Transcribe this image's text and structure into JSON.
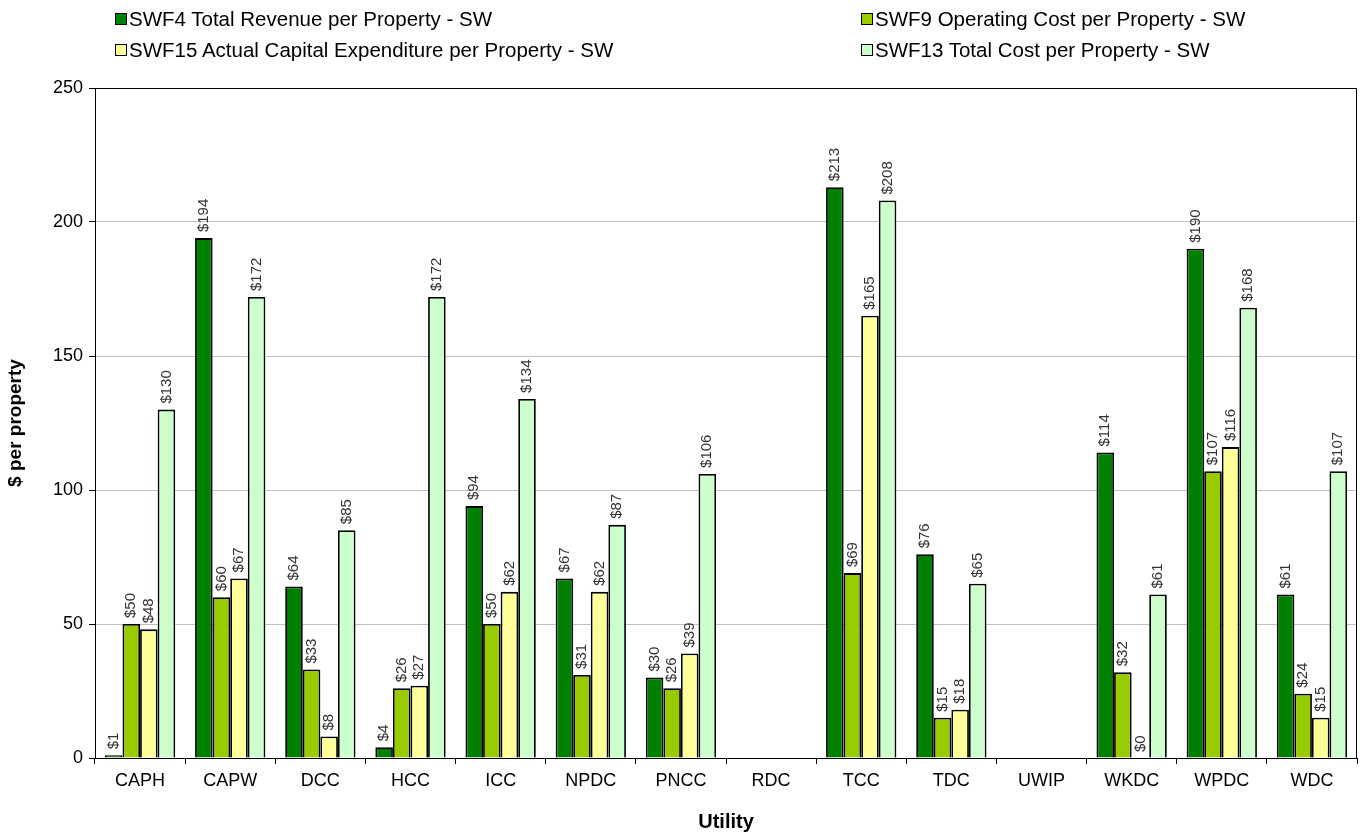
{
  "chart_data": {
    "type": "bar",
    "xlabel": "Utility",
    "ylabel": "$ per property",
    "categories": [
      "CAPH",
      "CAPW",
      "DCC",
      "HCC",
      "ICC",
      "NPDC",
      "PNCC",
      "RDC",
      "TCC",
      "TDC",
      "UWIP",
      "WKDC",
      "WPDC",
      "WDC"
    ],
    "series": [
      {
        "name": "SWF4 Total Revenue per Property - SW",
        "color": "#008000",
        "values": [
          1,
          194,
          64,
          4,
          94,
          67,
          30,
          null,
          213,
          76,
          null,
          114,
          190,
          61
        ],
        "value_labels": [
          "$1",
          "$194",
          "$64",
          "$4",
          "$94",
          "$67",
          "$30",
          null,
          "$213",
          "$76",
          null,
          "$114",
          "$190",
          "$61"
        ]
      },
      {
        "name": "SWF9 Operating Cost per Property - SW",
        "color": "#99cc00",
        "values": [
          50,
          60,
          33,
          26,
          50,
          31,
          26,
          null,
          69,
          15,
          null,
          32,
          107,
          24
        ],
        "value_labels": [
          "$50",
          "$60",
          "$33",
          "$26",
          "$50",
          "$31",
          "$26",
          null,
          "$69",
          "$15",
          null,
          "$32",
          "$107",
          "$24"
        ]
      },
      {
        "name": "SWF15 Actual Capital Expenditure per Property - SW",
        "color": "#ffff99",
        "values": [
          48,
          67,
          8,
          27,
          62,
          62,
          39,
          null,
          165,
          18,
          null,
          0,
          116,
          15
        ],
        "value_labels": [
          "$48",
          "$67",
          "$8",
          "$27",
          "$62",
          "$62",
          "$39",
          null,
          "$165",
          "$18",
          null,
          "$0",
          "$116",
          "$15"
        ]
      },
      {
        "name": "SWF13 Total Cost per Property - SW",
        "color": "#ccffcc",
        "values": [
          130,
          172,
          85,
          172,
          134,
          87,
          106,
          null,
          208,
          65,
          null,
          61,
          168,
          107
        ],
        "value_labels": [
          "$130",
          "$172",
          "$85",
          "$172",
          "$134",
          "$87",
          "$106",
          null,
          "$208",
          "$65",
          null,
          "$61",
          "$168",
          "$107"
        ]
      }
    ],
    "ylim": [
      0,
      250
    ],
    "yticks": [
      0,
      50,
      100,
      150,
      200,
      250
    ],
    "grid": "y",
    "legend": "top"
  }
}
